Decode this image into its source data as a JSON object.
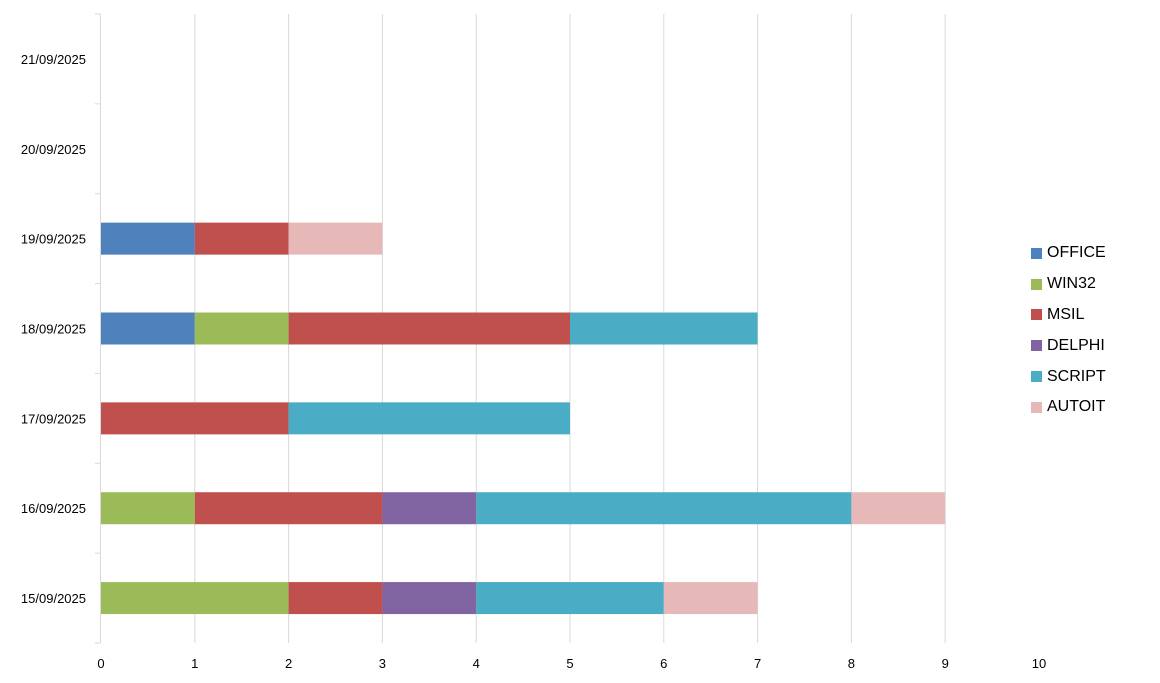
{
  "chart_data": {
    "type": "bar",
    "orientation": "horizontal",
    "stacked": true,
    "categories": [
      "15/09/2025",
      "16/09/2025",
      "17/09/2025",
      "18/09/2025",
      "19/09/2025",
      "20/09/2025",
      "21/09/2025"
    ],
    "series": [
      {
        "name": "OFFICE",
        "color": "#4F81BD",
        "values": [
          0,
          0,
          0,
          1,
          1,
          0,
          0
        ]
      },
      {
        "name": "WIN32",
        "color": "#9BBB59",
        "values": [
          2,
          1,
          0,
          1,
          0,
          0,
          0
        ]
      },
      {
        "name": "MSIL",
        "color": "#C0504D",
        "values": [
          1,
          2,
          2,
          3,
          1,
          0,
          0
        ]
      },
      {
        "name": "DELPHI",
        "color": "#8064A2",
        "values": [
          1,
          1,
          0,
          0,
          0,
          0,
          0
        ]
      },
      {
        "name": "SCRIPT",
        "color": "#4BACC6",
        "values": [
          2,
          4,
          3,
          2,
          0,
          0,
          0
        ]
      },
      {
        "name": "AUTOIT",
        "color": "#E6B9B8",
        "values": [
          1,
          1,
          0,
          0,
          1,
          0,
          0
        ]
      }
    ],
    "xlim": [
      0,
      10
    ],
    "xticks": [
      "0",
      "1",
      "2",
      "3",
      "4",
      "5",
      "6",
      "7",
      "8",
      "9",
      "10"
    ],
    "grid": "vertical",
    "legend_position": "right"
  }
}
